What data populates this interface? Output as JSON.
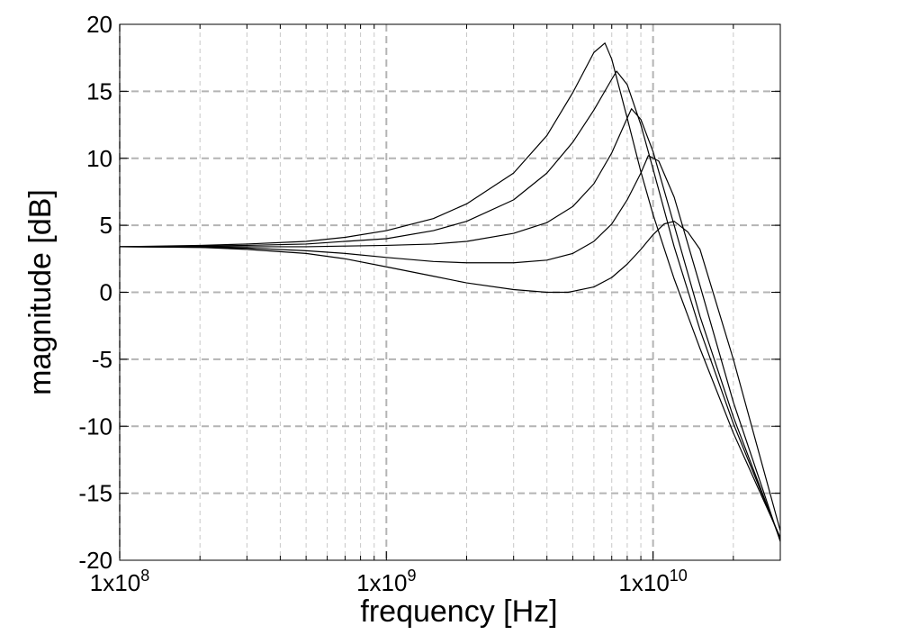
{
  "chart_data": {
    "type": "line",
    "title": "",
    "xlabel": "frequency [Hz]",
    "ylabel": "magnitude [dB]",
    "x_scale": "log",
    "xlim": [
      100000000,
      30000000000
    ],
    "ylim": [
      -20,
      20
    ],
    "grid": true,
    "legend": "none",
    "x_ticks": [
      {
        "value": 100000000,
        "label": "1x10",
        "exp": "8"
      },
      {
        "value": 1000000000,
        "label": "1x10",
        "exp": "9"
      },
      {
        "value": 10000000000,
        "label": "1x10",
        "exp": "10"
      }
    ],
    "y_ticks": [
      {
        "value": 20,
        "label": "20"
      },
      {
        "value": 15,
        "label": "15"
      },
      {
        "value": 10,
        "label": "10"
      },
      {
        "value": 5,
        "label": "5"
      },
      {
        "value": 0,
        "label": "0"
      },
      {
        "value": -5,
        "label": "-5"
      },
      {
        "value": -10,
        "label": "-10"
      },
      {
        "value": -15,
        "label": "-15"
      },
      {
        "value": -20,
        "label": "-20"
      }
    ],
    "x_minor_grid": [
      200000000,
      300000000,
      400000000,
      500000000,
      600000000,
      700000000,
      800000000,
      900000000,
      2000000000,
      3000000000,
      4000000000,
      5000000000,
      6000000000,
      7000000000,
      8000000000,
      9000000000,
      20000000000
    ],
    "series": [
      {
        "x": [
          100000000,
          200000000,
          300000000,
          500000000,
          700000000,
          1000000000,
          1500000000,
          2000000000,
          3000000000,
          4000000000,
          5000000000,
          6000000000,
          6600000000,
          7000000000,
          8000000000,
          9000000000,
          10000000000,
          12000000000,
          15000000000,
          20000000000,
          30000000000
        ],
        "y": [
          3.4,
          3.5,
          3.6,
          3.8,
          4.1,
          4.6,
          5.5,
          6.6,
          8.9,
          11.7,
          14.9,
          17.9,
          18.6,
          17.4,
          13.0,
          9.0,
          5.8,
          1.0,
          -4.2,
          -10.5,
          -18.3
        ]
      },
      {
        "x": [
          100000000,
          200000000,
          300000000,
          500000000,
          700000000,
          1000000000,
          1500000000,
          2000000000,
          3000000000,
          4000000000,
          5000000000,
          6000000000,
          7000000000,
          7300000000,
          8000000000,
          9000000000,
          10000000000,
          12000000000,
          15000000000,
          20000000000,
          30000000000
        ],
        "y": [
          3.4,
          3.45,
          3.5,
          3.6,
          3.8,
          4.0,
          4.6,
          5.3,
          6.9,
          8.9,
          11.2,
          13.6,
          15.9,
          16.5,
          15.5,
          12.5,
          9.2,
          3.4,
          -2.8,
          -9.8,
          -18.4
        ]
      },
      {
        "x": [
          100000000,
          200000000,
          300000000,
          500000000,
          700000000,
          1000000000,
          1500000000,
          2000000000,
          3000000000,
          4000000000,
          5000000000,
          6000000000,
          7000000000,
          8000000000,
          8300000000,
          9000000000,
          10000000000,
          12000000000,
          15000000000,
          20000000000,
          30000000000
        ],
        "y": [
          3.4,
          3.4,
          3.4,
          3.4,
          3.45,
          3.5,
          3.6,
          3.8,
          4.4,
          5.2,
          6.4,
          8.1,
          10.4,
          13.0,
          13.7,
          12.9,
          10.5,
          5.0,
          -1.8,
          -9.3,
          -18.5
        ]
      },
      {
        "x": [
          100000000,
          200000000,
          300000000,
          500000000,
          700000000,
          1000000000,
          1500000000,
          2000000000,
          3000000000,
          4000000000,
          5000000000,
          6000000000,
          7000000000,
          8000000000,
          9000000000,
          9600000000,
          10500000000,
          12000000000,
          15000000000,
          20000000000,
          30000000000
        ],
        "y": [
          3.4,
          3.35,
          3.3,
          3.1,
          2.9,
          2.6,
          2.3,
          2.2,
          2.2,
          2.4,
          2.9,
          3.8,
          5.1,
          6.9,
          8.9,
          10.2,
          9.8,
          7.1,
          0.5,
          -8.2,
          -18.6
        ]
      },
      {
        "x": [
          100000000,
          200000000,
          300000000,
          500000000,
          700000000,
          1000000000,
          1500000000,
          2000000000,
          3000000000,
          4000000000,
          4800000000,
          6000000000,
          7000000000,
          8000000000,
          9000000000,
          10000000000,
          11000000000,
          12000000000,
          13500000000,
          15000000000,
          20000000000,
          30000000000
        ],
        "y": [
          3.4,
          3.35,
          3.2,
          2.9,
          2.5,
          1.9,
          1.2,
          0.7,
          0.2,
          0.0,
          0.0,
          0.4,
          1.1,
          2.1,
          3.2,
          4.3,
          5.1,
          5.3,
          4.5,
          3.2,
          -5.0,
          -17.8
        ]
      }
    ]
  }
}
